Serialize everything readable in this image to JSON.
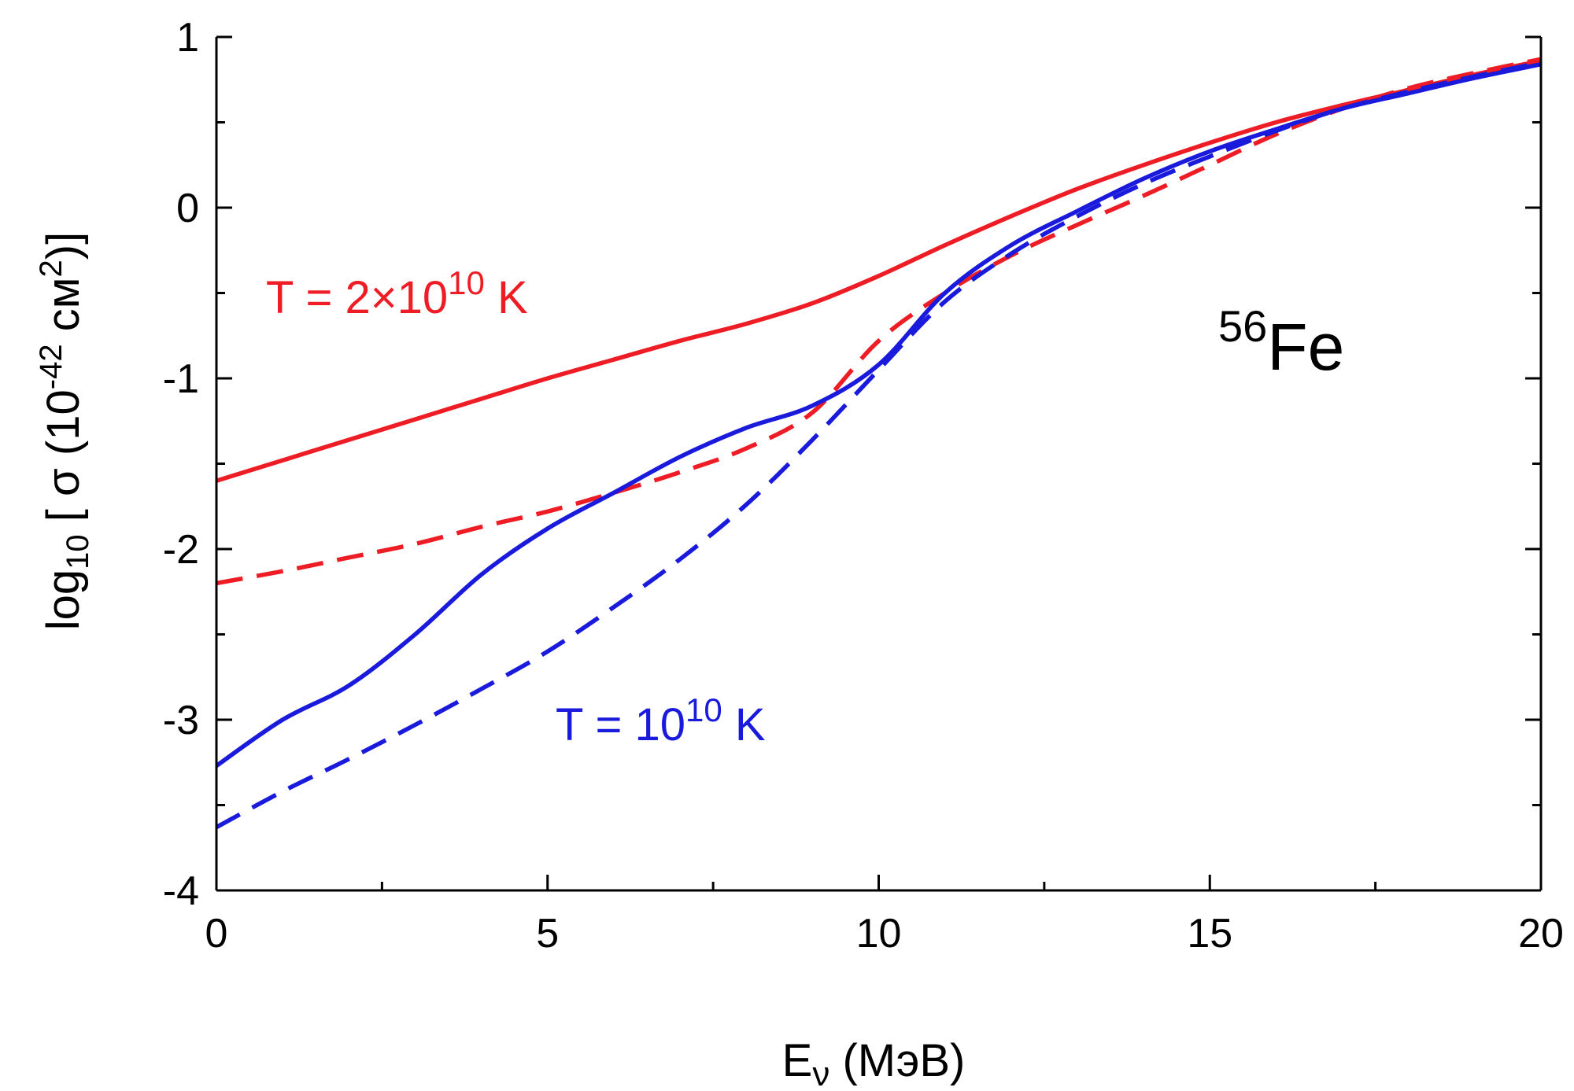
{
  "chart_data": {
    "type": "line",
    "xlabel": {
      "main": "E",
      "sub": "ν",
      "rest": " (МэВ)"
    },
    "ylabel": {
      "pre": "log",
      "sub": "10",
      "mid": " [ σ  (10",
      "sup": "-42",
      "mid2": " см",
      "sup2": "2",
      "post": ")]"
    },
    "xlim": [
      0,
      20
    ],
    "ylim": [
      -4,
      1
    ],
    "xticks": [
      "0",
      "5",
      "10",
      "15",
      "20"
    ],
    "yticks": [
      "-4",
      "-3",
      "-2",
      "-1",
      "0",
      "1"
    ],
    "colors": {
      "red": "#ee1c24",
      "blue": "#1a1adc"
    },
    "annotations": {
      "isotope": {
        "sup": "56",
        "text": "Fe"
      },
      "red_label": {
        "pre": "T = 2×10",
        "sup": "10",
        "post": " K"
      },
      "blue_label": {
        "pre": "T = 10",
        "sup": "10",
        "post": " K"
      }
    },
    "series": [
      {
        "color": "red",
        "style": "solid",
        "points": [
          [
            0,
            -1.6
          ],
          [
            1,
            -1.48
          ],
          [
            2,
            -1.36
          ],
          [
            3,
            -1.24
          ],
          [
            4,
            -1.12
          ],
          [
            5,
            -1.0
          ],
          [
            6,
            -0.89
          ],
          [
            7,
            -0.78
          ],
          [
            8,
            -0.68
          ],
          [
            9,
            -0.56
          ],
          [
            10,
            -0.4
          ],
          [
            11,
            -0.22
          ],
          [
            12,
            -0.05
          ],
          [
            13,
            0.11
          ],
          [
            14,
            0.25
          ],
          [
            15,
            0.38
          ],
          [
            16,
            0.5
          ],
          [
            17,
            0.6
          ],
          [
            18,
            0.69
          ],
          [
            19,
            0.78
          ],
          [
            20,
            0.86
          ]
        ]
      },
      {
        "color": "red",
        "style": "dashed",
        "points": [
          [
            0,
            -2.2
          ],
          [
            1,
            -2.13
          ],
          [
            2,
            -2.05
          ],
          [
            3,
            -1.97
          ],
          [
            4,
            -1.87
          ],
          [
            5,
            -1.78
          ],
          [
            6,
            -1.67
          ],
          [
            7,
            -1.55
          ],
          [
            8,
            -1.41
          ],
          [
            9,
            -1.2
          ],
          [
            10,
            -0.78
          ],
          [
            11,
            -0.5
          ],
          [
            12,
            -0.28
          ],
          [
            13,
            -0.1
          ],
          [
            14,
            0.07
          ],
          [
            15,
            0.25
          ],
          [
            16,
            0.43
          ],
          [
            17,
            0.58
          ],
          [
            18,
            0.7
          ],
          [
            19,
            0.79
          ],
          [
            20,
            0.87
          ]
        ]
      },
      {
        "color": "blue",
        "style": "solid",
        "points": [
          [
            0,
            -3.27
          ],
          [
            1,
            -3.0
          ],
          [
            2,
            -2.8
          ],
          [
            3,
            -2.5
          ],
          [
            4,
            -2.15
          ],
          [
            5,
            -1.88
          ],
          [
            6,
            -1.67
          ],
          [
            7,
            -1.46
          ],
          [
            8,
            -1.29
          ],
          [
            9,
            -1.16
          ],
          [
            10,
            -0.92
          ],
          [
            11,
            -0.5
          ],
          [
            12,
            -0.22
          ],
          [
            13,
            -0.02
          ],
          [
            14,
            0.17
          ],
          [
            15,
            0.33
          ],
          [
            16,
            0.46
          ],
          [
            17,
            0.58
          ],
          [
            18,
            0.67
          ],
          [
            19,
            0.76
          ],
          [
            20,
            0.84
          ]
        ]
      },
      {
        "color": "blue",
        "style": "dashed",
        "points": [
          [
            0,
            -3.63
          ],
          [
            1,
            -3.42
          ],
          [
            2,
            -3.23
          ],
          [
            3,
            -3.03
          ],
          [
            4,
            -2.82
          ],
          [
            5,
            -2.6
          ],
          [
            6,
            -2.34
          ],
          [
            7,
            -2.06
          ],
          [
            8,
            -1.74
          ],
          [
            9,
            -1.36
          ],
          [
            10,
            -0.95
          ],
          [
            11,
            -0.55
          ],
          [
            12,
            -0.27
          ],
          [
            13,
            -0.05
          ],
          [
            14,
            0.14
          ],
          [
            15,
            0.3
          ],
          [
            16,
            0.45
          ],
          [
            17,
            0.58
          ],
          [
            18,
            0.68
          ],
          [
            19,
            0.77
          ],
          [
            20,
            0.85
          ]
        ]
      }
    ]
  }
}
